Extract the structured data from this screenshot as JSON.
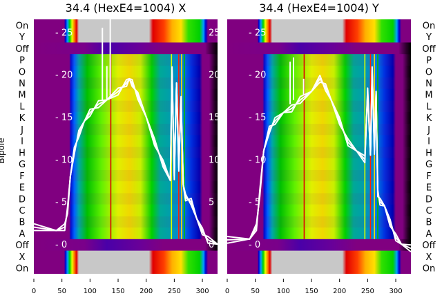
{
  "chart_data": [
    {
      "type": "heatmap",
      "title": "34.4 (HexE4=1004) X",
      "ylabel": "Bipole",
      "xlabel": "",
      "xlim": [
        0,
        327
      ],
      "x_ticks": [
        "0",
        "50",
        "100",
        "150",
        "200",
        "250",
        "300"
      ],
      "row_labels": [
        "On",
        "Y",
        "Off",
        "P",
        "O",
        "N",
        "M",
        "L",
        "K",
        "J",
        "I",
        "H",
        "G",
        "F",
        "E",
        "D",
        "C",
        "B",
        "A",
        "Off",
        "X",
        "On"
      ],
      "overlay_ylim": [
        -3.5,
        26.5
      ],
      "overlay_ticks": [
        "0",
        "5",
        "10",
        "15",
        "20",
        "25"
      ],
      "overlay_series": [
        {
          "name": "profile",
          "x": [
            0,
            40,
            55,
            60,
            65,
            72,
            80,
            90,
            100,
            115,
            130,
            150,
            165,
            170,
            175,
            185,
            200,
            215,
            230,
            243,
            246,
            250,
            254,
            258,
            262,
            266,
            270,
            280,
            290,
            300,
            310,
            327
          ],
          "y": [
            2,
            1.6,
            2,
            4,
            8,
            11,
            13,
            14.5,
            15.5,
            16.5,
            17,
            18,
            19,
            19.5,
            19,
            17.5,
            15,
            12,
            9.5,
            7.5,
            20.5,
            8,
            19,
            9,
            17,
            7,
            5.5,
            5,
            3,
            1.5,
            0.5,
            0
          ]
        },
        {
          "name": "spikes",
          "x": [
            122,
            122,
            122,
            130,
            130,
            130,
            136,
            136,
            136
          ],
          "y": [
            17,
            25.5,
            17,
            17,
            21,
            17.5,
            17.5,
            27,
            17.5
          ]
        }
      ],
      "streaks": [
        {
          "x": 137,
          "color": "#e00000"
        },
        {
          "x": 245,
          "color": "#d8ff00"
        },
        {
          "x": 258,
          "color": "#ff2000"
        },
        {
          "x": 263,
          "color": "#ffe000"
        },
        {
          "x": 268,
          "color": "#00c000"
        }
      ]
    },
    {
      "type": "heatmap",
      "title": "34.4 (HexE4=1004) Y",
      "ylabel": "",
      "xlabel": "",
      "xlim": [
        0,
        327
      ],
      "x_ticks": [
        "0",
        "50",
        "100",
        "150",
        "200",
        "250",
        "300"
      ],
      "row_labels": [
        "On",
        "Y",
        "Off",
        "P",
        "O",
        "N",
        "M",
        "L",
        "K",
        "J",
        "I",
        "H",
        "G",
        "F",
        "E",
        "D",
        "C",
        "B",
        "A",
        "Off",
        "X",
        "On"
      ],
      "overlay_ylim": [
        -3.5,
        26.5
      ],
      "overlay_ticks": [
        "0",
        "5",
        "10",
        "15",
        "20",
        "25"
      ],
      "overlay_series": [
        {
          "name": "profile",
          "x": [
            0,
            40,
            52,
            58,
            65,
            75,
            85,
            100,
            115,
            130,
            150,
            165,
            175,
            185,
            200,
            215,
            230,
            245,
            250,
            255,
            258,
            262,
            265,
            268,
            272,
            280,
            290,
            300,
            310,
            327
          ],
          "y": [
            0.5,
            0.6,
            2,
            6,
            11,
            13.5,
            14.5,
            15.5,
            16,
            17,
            18,
            19.5,
            18.5,
            17,
            14.5,
            12,
            11,
            10,
            18,
            10.5,
            20.5,
            11,
            18,
            6,
            5,
            4.5,
            2.5,
            0.8,
            0,
            -0.5
          ]
        },
        {
          "name": "spikes",
          "x": [
            112,
            112,
            112,
            118,
            118,
            118,
            136,
            136,
            136
          ],
          "y": [
            16.5,
            21.5,
            16.5,
            17,
            22,
            17,
            17.5,
            19.5,
            17.5
          ]
        }
      ],
      "streaks": [
        {
          "x": 137,
          "color": "#e00000"
        },
        {
          "x": 245,
          "color": "#d8ff00"
        },
        {
          "x": 255,
          "color": "#ff2000"
        },
        {
          "x": 262,
          "color": "#ffe000"
        },
        {
          "x": 268,
          "color": "#00c000"
        }
      ]
    }
  ],
  "colors": {
    "background": "#800080",
    "on_gray": "#c8c8c8",
    "line": "#ffffff"
  }
}
